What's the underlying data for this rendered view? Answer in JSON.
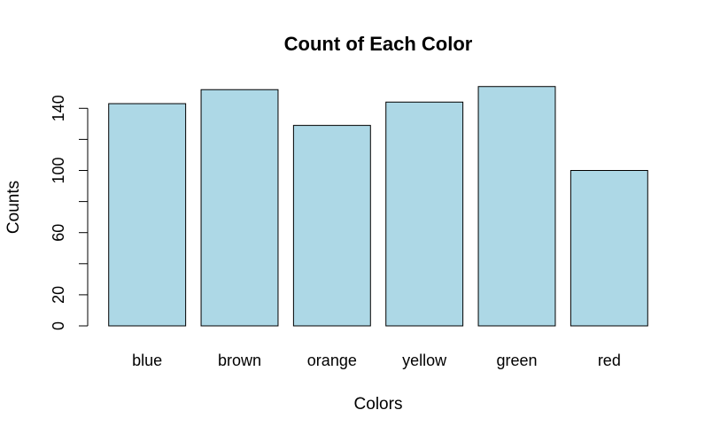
{
  "chart_data": {
    "type": "bar",
    "title": "Count of Each Color",
    "xlabel": "Colors",
    "ylabel": "Counts",
    "categories": [
      "blue",
      "brown",
      "orange",
      "yellow",
      "green",
      "red"
    ],
    "values": [
      143,
      152,
      129,
      144,
      154,
      100
    ],
    "ylim": [
      0,
      160
    ],
    "y_ticks": [
      0,
      20,
      40,
      60,
      80,
      100,
      120,
      140
    ],
    "y_tick_labels": [
      "0",
      "20",
      "",
      "60",
      "",
      "100",
      "",
      "140"
    ],
    "bar_color": "#ADD8E6",
    "bar_border_color": "#000000",
    "grid": false,
    "legend": "none"
  }
}
